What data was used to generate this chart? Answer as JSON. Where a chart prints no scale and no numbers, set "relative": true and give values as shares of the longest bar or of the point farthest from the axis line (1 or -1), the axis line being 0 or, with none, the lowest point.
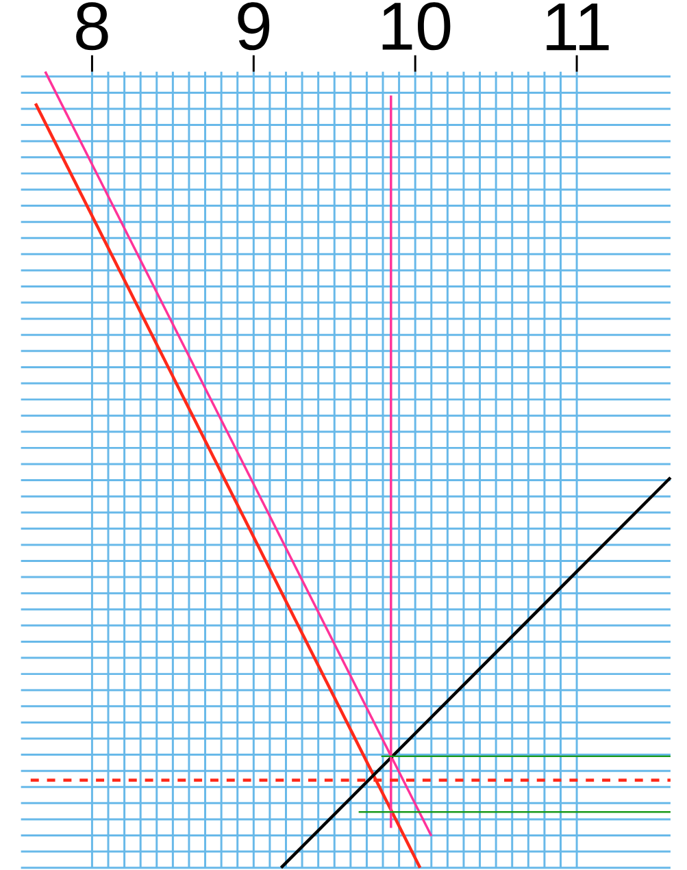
{
  "chart_data": {
    "type": "line",
    "relative": true,
    "xlim": [
      7.56,
      11.58
    ],
    "xticks": [
      8,
      9,
      10,
      11
    ],
    "grid": true,
    "tick_labels": "x",
    "marker": "none",
    "series": [
      {
        "color": "#ff2a1a",
        "x": [
          7.65,
          10.03
        ],
        "values": [
          0.96,
          0
        ]
      },
      {
        "color": "#ff3399",
        "x": [
          7.71,
          10.1
        ],
        "values": [
          1,
          0.04
        ]
      },
      {
        "color": "#000000",
        "x": [
          9.17,
          11.58
        ],
        "values": [
          0,
          0.49
        ]
      },
      {
        "color": "#ff3399",
        "x": [
          9.85,
          9.85
        ],
        "values": [
          0.97,
          0.05
        ]
      },
      {
        "color": "#1a9a1a",
        "x": [
          9.79,
          11.58
        ],
        "values": [
          0.14,
          0.14
        ]
      },
      {
        "color": "#1a9a1a",
        "x": [
          9.65,
          11.58
        ],
        "values": [
          0.07,
          0.07
        ]
      },
      {
        "color": "#ff2a1a",
        "x": [
          7.62,
          11.58
        ],
        "values": [
          0.11,
          0.11
        ],
        "line_style": "dashed"
      }
    ]
  }
}
